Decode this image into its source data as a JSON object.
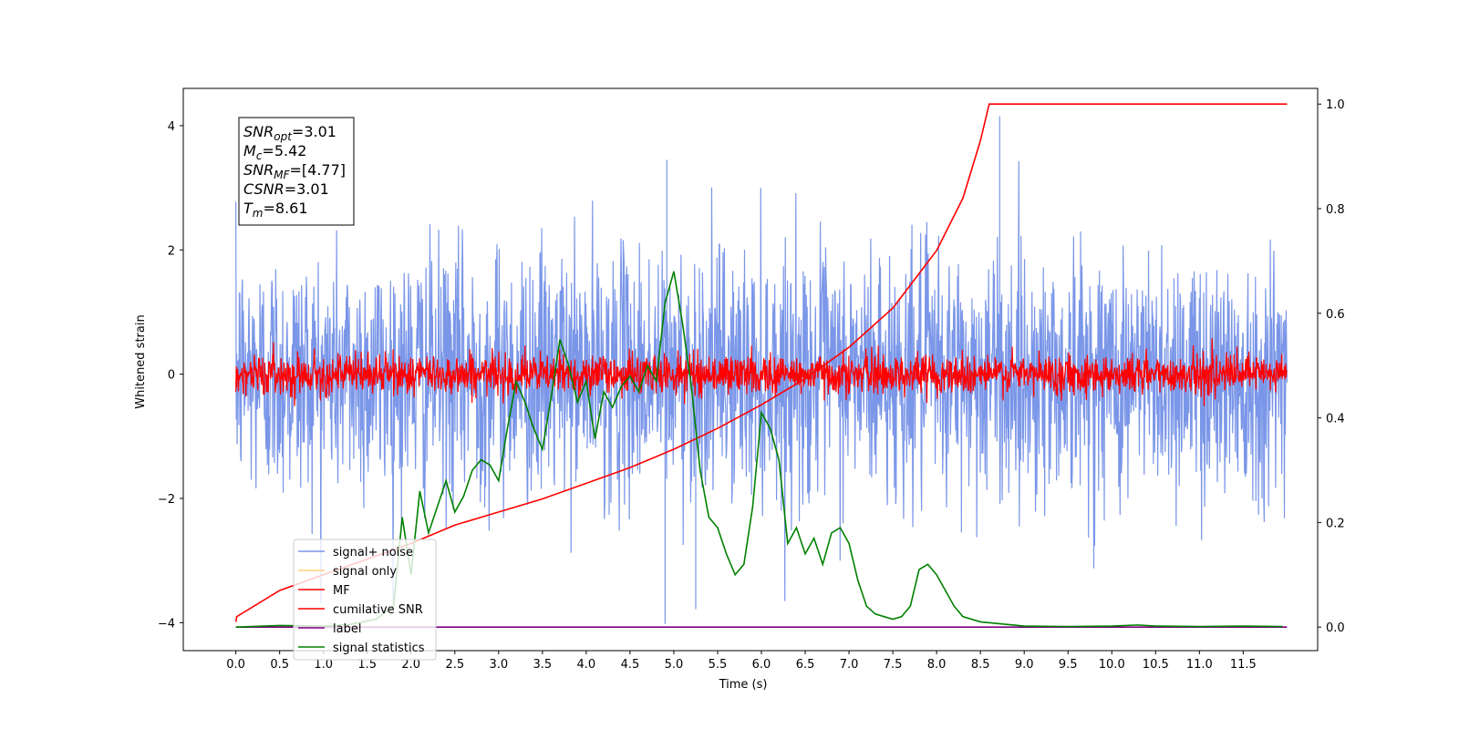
{
  "chart_data": {
    "type": "line",
    "xlabel": "Time (s)",
    "ylabel": "Whitened strain",
    "xlim": [
      -0.6,
      12.35
    ],
    "ylim": [
      -4.45,
      4.6
    ],
    "y2lim": [
      -0.045,
      1.03
    ],
    "x_ticks": [
      0.0,
      0.5,
      1.0,
      1.5,
      2.0,
      2.5,
      3.0,
      3.5,
      4.0,
      4.5,
      5.0,
      5.5,
      6.0,
      6.5,
      7.0,
      7.5,
      8.0,
      8.5,
      9.0,
      9.5,
      10.0,
      10.5,
      11.0,
      11.5
    ],
    "x_tick_labels": [
      "0.0",
      "0.5",
      "1.0",
      "1.5",
      "2.0",
      "2.5",
      "3.0",
      "3.5",
      "4.0",
      "4.5",
      "5.0",
      "5.5",
      "6.0",
      "6.5",
      "7.0",
      "7.5",
      "8.0",
      "8.5",
      "9.0",
      "9.5",
      "10.0",
      "10.5",
      "11.0",
      "11.5"
    ],
    "y_ticks": [
      4,
      2,
      0,
      -2,
      -4
    ],
    "y_tick_labels": [
      "4",
      "2",
      "0",
      "−2",
      "−4"
    ],
    "y2_ticks": [
      1.0,
      0.8,
      0.6,
      0.4,
      0.2,
      0.0
    ],
    "y2_tick_labels": [
      "1.0",
      "0.8",
      "0.6",
      "0.4",
      "0.2",
      "0.0"
    ],
    "stats_box": [
      {
        "sym": "SNR",
        "sub": "opt",
        "value": "=3.01"
      },
      {
        "sym": "M",
        "sub": "c",
        "value": "=5.42"
      },
      {
        "sym": "SNR",
        "sub": "MF",
        "value": "=[4.77]"
      },
      {
        "sym": "CSNR",
        "sub": "",
        "value": "=3.01"
      },
      {
        "sym": "T",
        "sub": "m",
        "value": "=8.61"
      }
    ],
    "legend_placement": "lower-left",
    "series": [
      {
        "name": "signal+ noise",
        "color": "#7a96e8",
        "axis": "left",
        "x_range": [
          0.0,
          12.0
        ],
        "mean": 0.0,
        "std": 1.0,
        "spikes": [
          [
            4.92,
            3.45
          ],
          [
            4.9,
            -4.02
          ],
          [
            8.72,
            4.15
          ],
          [
            5.25,
            -3.78
          ]
        ]
      },
      {
        "name": "signal only",
        "color": "#ffd27f",
        "axis": "left"
      },
      {
        "name": "MF",
        "color": "#ff0000",
        "axis": "left",
        "x_range": [
          0.0,
          12.0
        ],
        "mean": 0.0,
        "std": 0.16
      },
      {
        "name": "cumilative SNR",
        "color": "#ff0000",
        "axis": "right",
        "x": [
          0.0,
          0.01,
          0.5,
          1.0,
          1.5,
          2.0,
          2.5,
          3.0,
          3.5,
          4.0,
          4.5,
          5.0,
          5.5,
          6.0,
          6.5,
          7.0,
          7.5,
          8.0,
          8.3,
          8.5,
          8.6,
          12.0
        ],
        "y": [
          0.01,
          0.02,
          0.07,
          0.1,
          0.13,
          0.16,
          0.195,
          0.22,
          0.245,
          0.275,
          0.305,
          0.34,
          0.38,
          0.425,
          0.475,
          0.535,
          0.61,
          0.72,
          0.82,
          0.93,
          1.0,
          1.0
        ]
      },
      {
        "name": "label",
        "color": "#800080",
        "axis": "right",
        "x": [
          0.0,
          12.0
        ],
        "y": [
          0.0,
          0.0
        ]
      },
      {
        "name": "signal statistics",
        "color": "#008000",
        "axis": "right",
        "x": [
          0.0,
          0.5,
          1.0,
          1.3,
          1.6,
          1.8,
          1.9,
          2.0,
          2.1,
          2.2,
          2.3,
          2.4,
          2.5,
          2.6,
          2.7,
          2.8,
          2.9,
          3.0,
          3.1,
          3.2,
          3.3,
          3.4,
          3.5,
          3.6,
          3.7,
          3.8,
          3.9,
          4.0,
          4.1,
          4.2,
          4.3,
          4.4,
          4.5,
          4.6,
          4.7,
          4.8,
          4.9,
          5.0,
          5.1,
          5.2,
          5.3,
          5.4,
          5.5,
          5.6,
          5.7,
          5.8,
          5.9,
          6.0,
          6.1,
          6.2,
          6.3,
          6.4,
          6.5,
          6.6,
          6.7,
          6.8,
          6.9,
          7.0,
          7.1,
          7.2,
          7.3,
          7.4,
          7.5,
          7.6,
          7.7,
          7.8,
          7.9,
          8.0,
          8.1,
          8.2,
          8.3,
          8.5,
          9.0,
          9.5,
          10.0,
          10.3,
          10.5,
          11.0,
          11.5,
          11.95
        ],
        "y": [
          0.0,
          0.003,
          0.002,
          0.005,
          0.015,
          0.04,
          0.21,
          0.1,
          0.26,
          0.18,
          0.23,
          0.28,
          0.22,
          0.25,
          0.3,
          0.32,
          0.31,
          0.28,
          0.38,
          0.47,
          0.43,
          0.38,
          0.34,
          0.44,
          0.55,
          0.5,
          0.43,
          0.47,
          0.36,
          0.45,
          0.42,
          0.46,
          0.48,
          0.45,
          0.5,
          0.47,
          0.62,
          0.68,
          0.58,
          0.46,
          0.3,
          0.21,
          0.19,
          0.14,
          0.1,
          0.12,
          0.23,
          0.41,
          0.38,
          0.32,
          0.16,
          0.19,
          0.14,
          0.17,
          0.12,
          0.18,
          0.19,
          0.16,
          0.09,
          0.04,
          0.025,
          0.02,
          0.015,
          0.02,
          0.04,
          0.11,
          0.12,
          0.1,
          0.07,
          0.04,
          0.02,
          0.01,
          0.002,
          0.001,
          0.002,
          0.004,
          0.002,
          0.001,
          0.002,
          0.001
        ]
      }
    ]
  }
}
